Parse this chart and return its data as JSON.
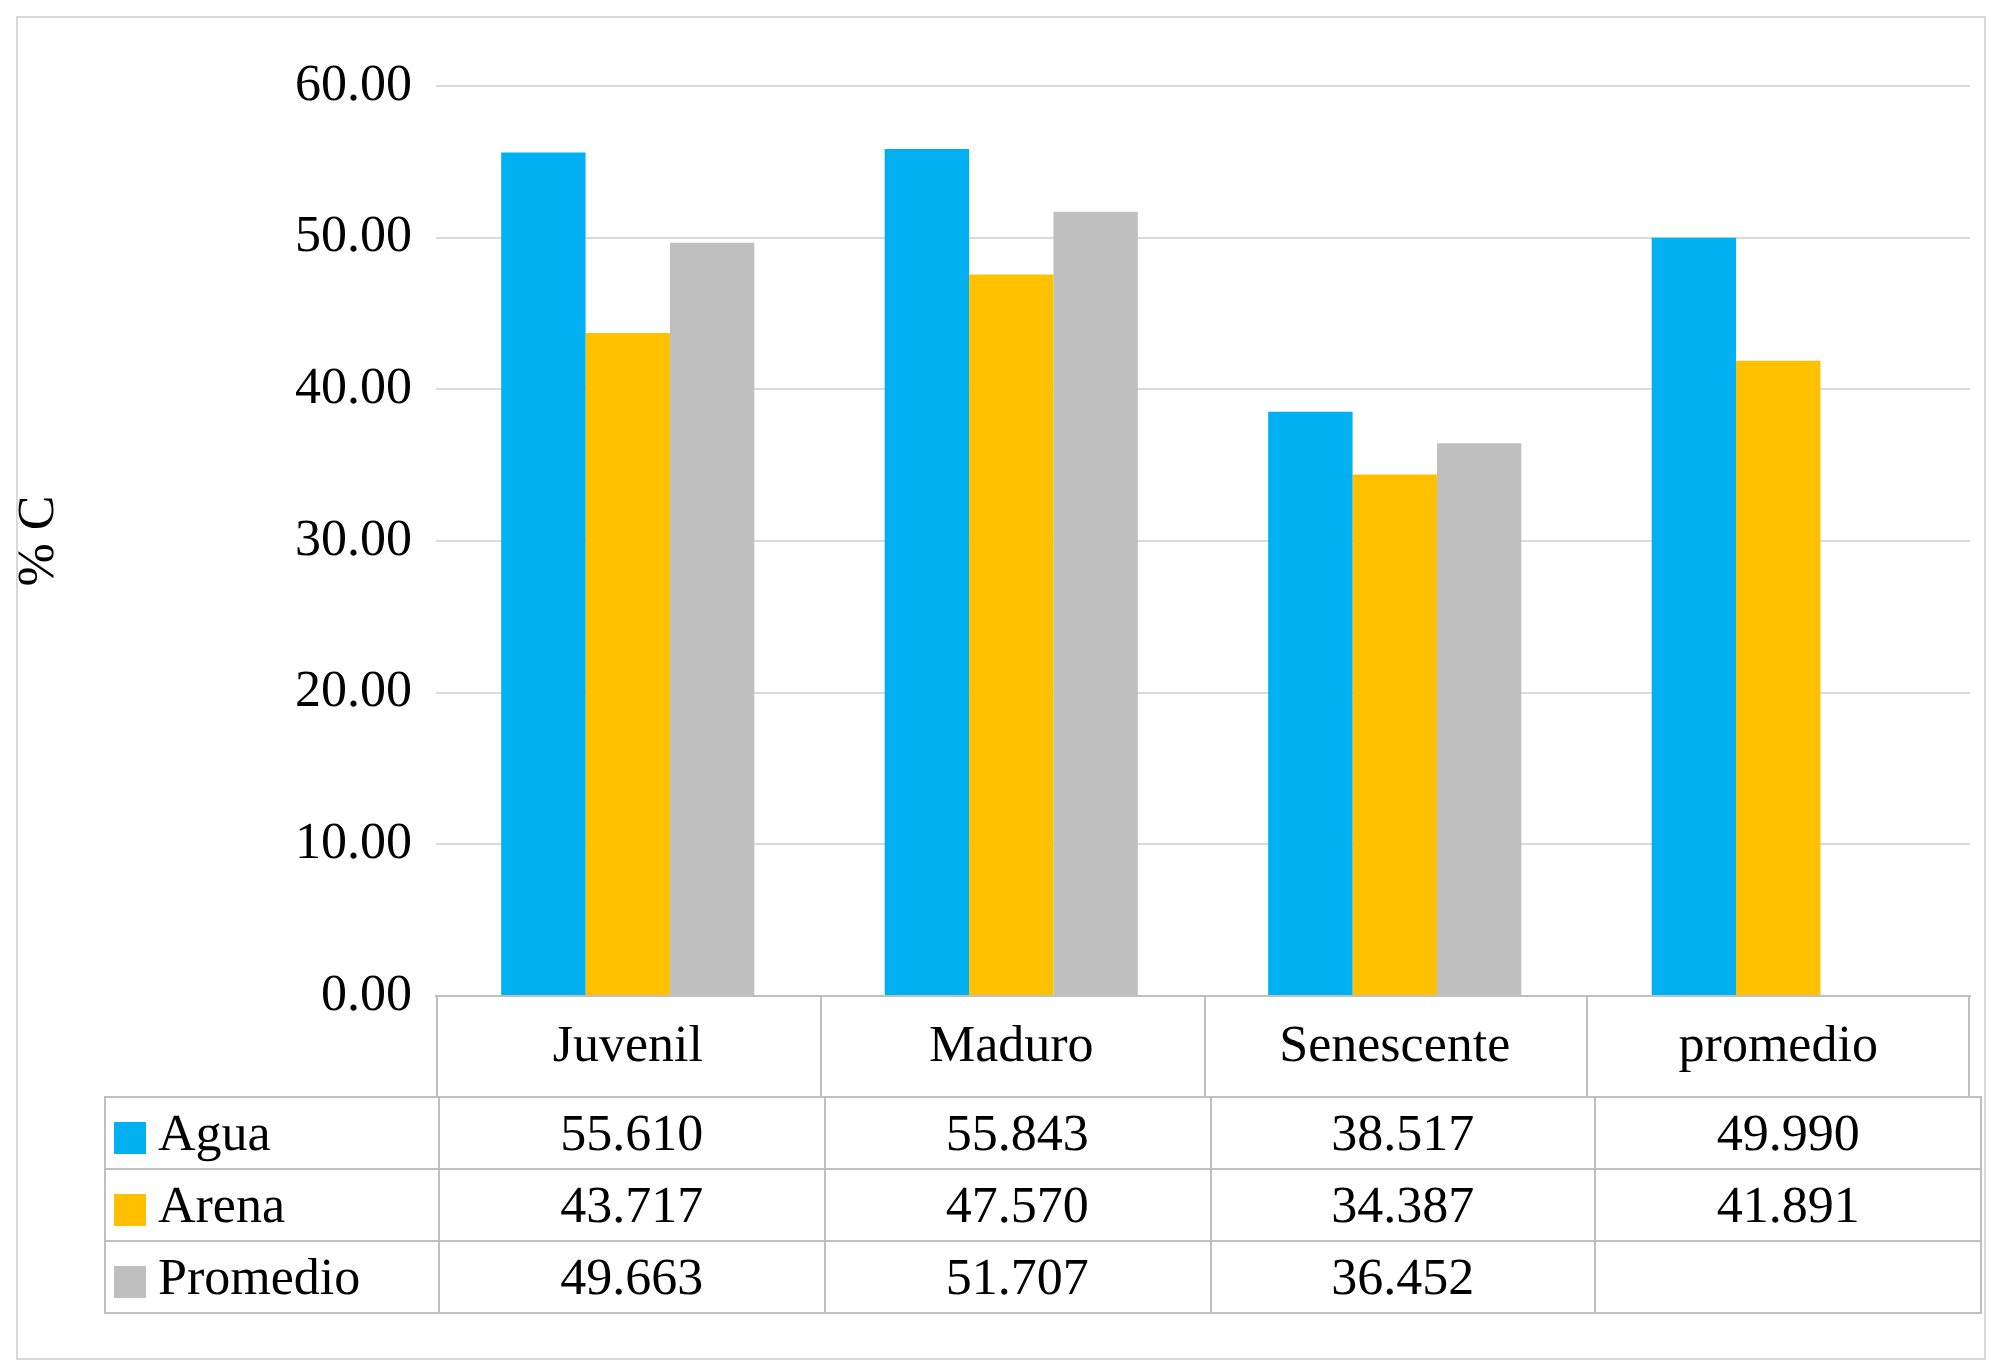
{
  "chart_data": {
    "type": "bar",
    "ylabel": "% C",
    "categories": [
      "Juvenil",
      "Maduro",
      "Senescente",
      "promedio"
    ],
    "series": [
      {
        "name": "Agua",
        "color": "#00b0f0",
        "values": [
          55.61,
          55.843,
          38.517,
          49.99
        ],
        "value_labels": [
          "55.610",
          "55.843",
          "38.517",
          "49.990"
        ]
      },
      {
        "name": "Arena",
        "color": "#ffc000",
        "values": [
          43.717,
          47.57,
          34.387,
          41.891
        ],
        "value_labels": [
          "43.717",
          "47.570",
          "34.387",
          "41.891"
        ]
      },
      {
        "name": "Promedio",
        "color": "#bfbfbf",
        "values": [
          49.663,
          51.707,
          36.452,
          null
        ],
        "value_labels": [
          "49.663",
          "51.707",
          "36.452",
          null
        ]
      }
    ],
    "ylim": [
      0,
      60
    ],
    "yticks": [
      {
        "value": 0,
        "label": "0.00"
      },
      {
        "value": 10,
        "label": "10.00"
      },
      {
        "value": 20,
        "label": "20.00"
      },
      {
        "value": 30,
        "label": "30.00"
      },
      {
        "value": 40,
        "label": "40.00"
      },
      {
        "value": 50,
        "label": "50.00"
      },
      {
        "value": 60,
        "label": "60.00"
      }
    ],
    "grid": "y",
    "legend": "bottom"
  }
}
